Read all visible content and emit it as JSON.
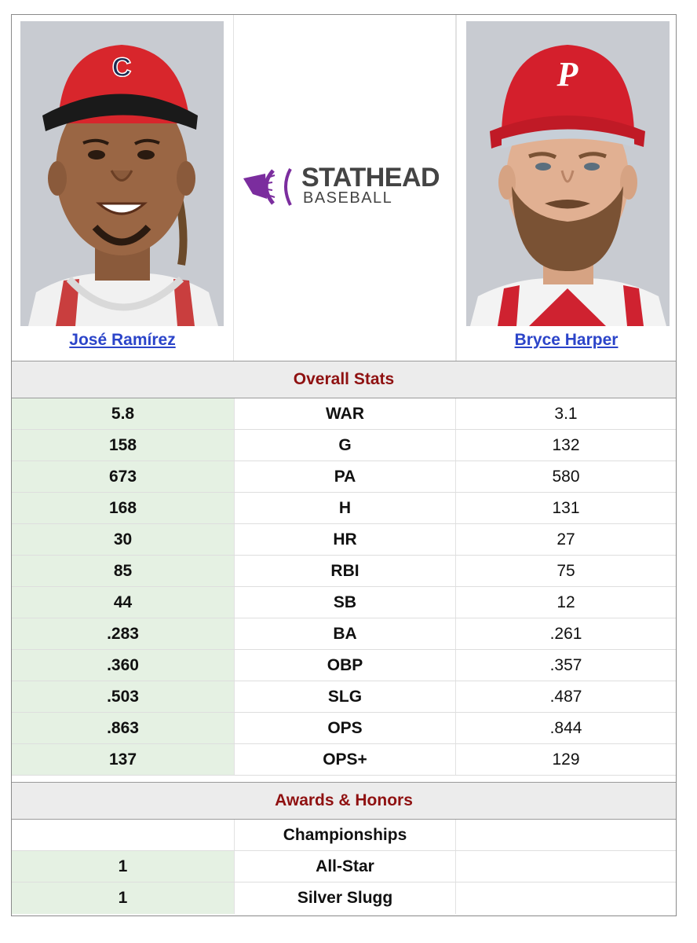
{
  "players": {
    "left": {
      "name": "José Ramírez",
      "cap_letter": "C",
      "cap_color": "#d8262c",
      "jersey_color": "#f2f2f2"
    },
    "right": {
      "name": "Bryce Harper",
      "cap_letter": "P",
      "cap_color": "#d41f2c",
      "jersey_color": "#f2f2f2"
    }
  },
  "logo": {
    "line1": "STATHEAD",
    "line2": "BASEBALL",
    "accent": "#7b2d9e"
  },
  "sections": {
    "overall": "Overall Stats",
    "awards": "Awards & Honors"
  },
  "stats": [
    {
      "left": "5.8",
      "label": "WAR",
      "right": "3.1"
    },
    {
      "left": "158",
      "label": "G",
      "right": "132"
    },
    {
      "left": "673",
      "label": "PA",
      "right": "580"
    },
    {
      "left": "168",
      "label": "H",
      "right": "131"
    },
    {
      "left": "30",
      "label": "HR",
      "right": "27"
    },
    {
      "left": "85",
      "label": "RBI",
      "right": "75"
    },
    {
      "left": "44",
      "label": "SB",
      "right": "12"
    },
    {
      "left": ".283",
      "label": "BA",
      "right": ".261"
    },
    {
      "left": ".360",
      "label": "OBP",
      "right": ".357"
    },
    {
      "left": ".503",
      "label": "SLG",
      "right": ".487"
    },
    {
      "left": ".863",
      "label": "OPS",
      "right": ".844"
    },
    {
      "left": "137",
      "label": "OPS+",
      "right": "129"
    }
  ],
  "awards": [
    {
      "left": "",
      "label": "Championships",
      "right": ""
    },
    {
      "left": "1",
      "label": "All-Star",
      "right": ""
    },
    {
      "left": "1",
      "label": "Silver Slugg",
      "right": ""
    }
  ],
  "colors": {
    "highlight_bg": "#e5f1e3",
    "section_title": "#8f1111",
    "link": "#2b44c9"
  }
}
